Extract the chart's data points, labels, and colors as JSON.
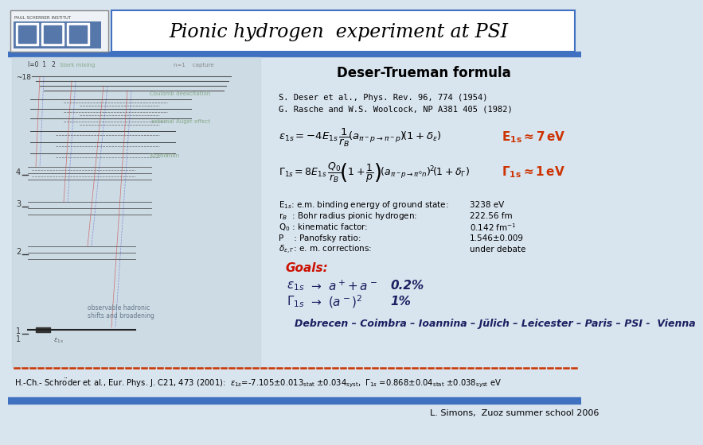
{
  "title": "Pionic hydrogen  experiment at PSI",
  "deser_title": "Deser-Trueman formula",
  "ref1": "S. Deser et al., Phys. Rev. 96, 774 (1954)",
  "ref2": "G. Rasche and W.S. Woolcock, NP A381 405 (1982)",
  "param_labels": [
    "E$_{1s}$: e.m. binding energy of ground state:",
    "r$_{B}$  : Bohr radius pionic hydrogen:",
    "Q$_{0}$ : kinematic factor:",
    "P    : Panofsky ratio:",
    "$\\delta_{\\epsilon,\\Gamma}$: e. m. corrections:"
  ],
  "param_values": [
    "3238 eV",
    "222.56 fm",
    "0.142 fm$^{-1}$",
    "1.546±0.009",
    "under debate"
  ],
  "goals_title": "Goals:",
  "collab": "Debrecen – Coimbra – Ioannina – Jülich – Leicester – Paris – PSI -  Vienna",
  "footer": "L. Simons,  Zuoz summer school 2006",
  "bg_color": "#d8e4ee",
  "header_bg": "#ffffff",
  "blue_line": "#4070c0",
  "dark_blue": "#1a2060",
  "red_color": "#cc1100",
  "orange_red": "#cc3300",
  "left_area_color": "#c8d8e0"
}
